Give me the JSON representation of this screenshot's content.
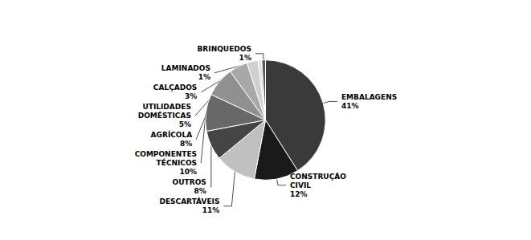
{
  "chart_data": {
    "type": "pie",
    "categories": [
      "EMBALAGENS",
      "CONSTRUÇÃO\nCIVIL",
      "DESCARTÁVEIS",
      "OUTROS",
      "COMPONENTES\nTÉCNICOS",
      "AGRÍCOLA",
      "UTILIDADES\nDOMÉSTICAS",
      "CALÇADOS",
      "LAMINADOS",
      "BRINQUEDOS"
    ],
    "values": [
      41,
      12,
      11,
      8,
      10,
      8,
      5,
      3,
      1,
      1
    ],
    "value_labels": [
      "41%",
      "12%",
      "11%",
      "8%",
      "10%",
      "8%",
      "5%",
      "3%",
      "1%",
      "1%"
    ],
    "colors": [
      "#3a3a3a",
      "#1a1a1a",
      "#c0c0c0",
      "#454545",
      "#686868",
      "#909090",
      "#a8a8a8",
      "#d0d0d0",
      "#e0e0e0",
      "#585858"
    ],
    "data_labels": true,
    "legend": false
  }
}
